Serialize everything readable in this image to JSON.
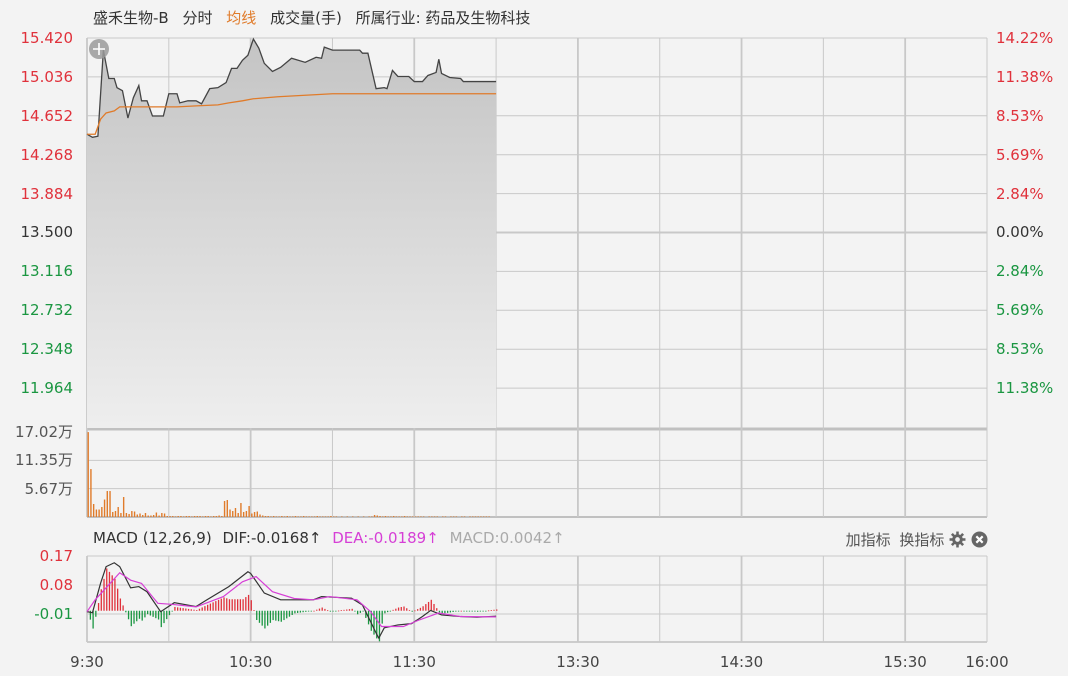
{
  "header": {
    "stock_name": "盛禾生物-B",
    "mode": "分时",
    "avg_line_label": "均线",
    "volume_label": "成交量(手)",
    "industry": "所属行业: 药品及生物科技"
  },
  "colors": {
    "up": "#e0313b",
    "down": "#1a9641",
    "avg_line": "#e07b2a",
    "volume": "#e07b2a",
    "dif": "#333333",
    "dea": "#d63fd6",
    "grid": "#c8c8c8"
  },
  "price_axis": {
    "labels": [
      "15.420",
      "15.036",
      "14.652",
      "14.268",
      "13.884",
      "13.500",
      "13.116",
      "12.732",
      "12.348",
      "11.964"
    ],
    "percent_labels": [
      "14.22%",
      "11.38%",
      "8.53%",
      "5.69%",
      "2.84%",
      "0.00%",
      "2.84%",
      "5.69%",
      "8.53%",
      "11.38%"
    ],
    "prev_close": 13.5
  },
  "volume_axis": {
    "labels": [
      "17.02万",
      "11.35万",
      "5.67万"
    ]
  },
  "macd": {
    "title": "MACD (12,26,9)",
    "dif": "DIF:-0.0168",
    "dea": "DEA:-0.0189",
    "macd": "MACD:0.0042",
    "arrow": "↑",
    "axis_labels": [
      "0.17",
      "0.08",
      "-0.01"
    ]
  },
  "tools": {
    "add_indicator": "加指标",
    "switch_indicator": "换指标",
    "settings_icon": "gear-icon",
    "close_icon": "close-circle-icon"
  },
  "time_axis": [
    "9:30",
    "10:30",
    "11:30",
    "13:30",
    "14:30",
    "15:30",
    "16:00"
  ],
  "chart_data": {
    "type": "line",
    "x_range": [
      "9:30",
      "16:00"
    ],
    "price_ylim": [
      11.58,
      15.42
    ],
    "price": [
      [
        "9:30",
        14.47
      ],
      [
        "9:32",
        14.44
      ],
      [
        "9:34",
        14.45
      ],
      [
        "9:36",
        15.3
      ],
      [
        "9:38",
        15.02
      ],
      [
        "9:40",
        15.02
      ],
      [
        "9:41",
        14.93
      ],
      [
        "9:43",
        14.9
      ],
      [
        "9:45",
        14.63
      ],
      [
        "9:47",
        14.83
      ],
      [
        "9:49",
        14.95
      ],
      [
        "9:50",
        14.8
      ],
      [
        "9:52",
        14.8
      ],
      [
        "9:54",
        14.65
      ],
      [
        "9:58",
        14.65
      ],
      [
        "10:00",
        14.87
      ],
      [
        "10:03",
        14.87
      ],
      [
        "10:04",
        14.78
      ],
      [
        "10:07",
        14.8
      ],
      [
        "10:10",
        14.8
      ],
      [
        "10:12",
        14.77
      ],
      [
        "10:15",
        14.92
      ],
      [
        "10:18",
        14.93
      ],
      [
        "10:21",
        14.98
      ],
      [
        "10:23",
        15.12
      ],
      [
        "10:25",
        15.12
      ],
      [
        "10:27",
        15.2
      ],
      [
        "10:29",
        15.25
      ],
      [
        "10:31",
        15.41
      ],
      [
        "10:33",
        15.32
      ],
      [
        "10:35",
        15.17
      ],
      [
        "10:38",
        15.09
      ],
      [
        "10:41",
        15.13
      ],
      [
        "10:45",
        15.22
      ],
      [
        "10:50",
        15.18
      ],
      [
        "10:54",
        15.23
      ],
      [
        "10:56",
        15.22
      ],
      [
        "10:57",
        15.33
      ],
      [
        "11:00",
        15.3
      ],
      [
        "11:10",
        15.3
      ],
      [
        "11:11",
        15.27
      ],
      [
        "11:13",
        15.27
      ],
      [
        "11:16",
        14.92
      ],
      [
        "11:19",
        14.93
      ],
      [
        "11:20",
        14.92
      ],
      [
        "11:22",
        15.1
      ],
      [
        "11:24",
        15.04
      ],
      [
        "11:28",
        15.04
      ],
      [
        "11:30",
        14.99
      ],
      [
        "11:33",
        14.99
      ],
      [
        "11:35",
        15.05
      ],
      [
        "11:38",
        15.08
      ],
      [
        "11:39",
        15.21
      ],
      [
        "11:40",
        15.07
      ],
      [
        "11:43",
        15.03
      ],
      [
        "11:47",
        15.02
      ],
      [
        "11:48",
        14.99
      ],
      [
        "12:00",
        14.99
      ]
    ],
    "avg_price": [
      [
        "9:30",
        14.47
      ],
      [
        "9:33",
        14.47
      ],
      [
        "9:35",
        14.62
      ],
      [
        "9:37",
        14.68
      ],
      [
        "9:40",
        14.7
      ],
      [
        "9:42",
        14.74
      ],
      [
        "10:03",
        14.74
      ],
      [
        "10:10",
        14.75
      ],
      [
        "10:18",
        14.76
      ],
      [
        "10:22",
        14.78
      ],
      [
        "10:27",
        14.8
      ],
      [
        "10:31",
        14.82
      ],
      [
        "10:40",
        14.84
      ],
      [
        "11:00",
        14.87
      ],
      [
        "12:00",
        14.87
      ]
    ],
    "volume_unit": "万",
    "volume_ylim": [
      0,
      17.02
    ],
    "volume": [
      17.0,
      9.6,
      2.6,
      1.5,
      1.5,
      2.0,
      3.5,
      5.2,
      5.2,
      1.0,
      1.2,
      2.0,
      0.8,
      4.0,
      0.8,
      0.6,
      1.2,
      1.1,
      0.5,
      0.7,
      0.4,
      0.8,
      0.3,
      0.3,
      0.4,
      0.9,
      0.3,
      0.8,
      0.7,
      0.2,
      0.2,
      0.2,
      0.1,
      0.2,
      0.2,
      0.1,
      0.2,
      0.2,
      0.1,
      0.2,
      0.2,
      0.2,
      0.1,
      0.2,
      0.2,
      0.1,
      0.2,
      0.2,
      0.3,
      0.2,
      3.2,
      3.4,
      1.5,
      1.2,
      1.8,
      0.8,
      2.8,
      1.0,
      1.2,
      2.2,
      0.7,
      1.0,
      1.1,
      0.5,
      0.3,
      0.2,
      0.2,
      0.1,
      0.2,
      0.1,
      0.1,
      0.2,
      0.1,
      0.2,
      0.1,
      0.1,
      0.2,
      0.1,
      0.1,
      0.2,
      0.1,
      0.1,
      0.1,
      0.1,
      0.2,
      0.1,
      0.1,
      0.1,
      0.1,
      0.2,
      0.1,
      0.1,
      0,
      0.1,
      0,
      0.1,
      0,
      0.1,
      0,
      0.1,
      0,
      0.1,
      0,
      0.1,
      0.1,
      0.4,
      0.3,
      0.2,
      0.1,
      0.2,
      0.1,
      0.1,
      0.2,
      0.1,
      0.1,
      0.1,
      0.2,
      0.1,
      0.1,
      0.1,
      0.1,
      0.1,
      0.1,
      0.1,
      0,
      0.1,
      0.1,
      0.1,
      0.1,
      0,
      0.1,
      0.1,
      0,
      0.1,
      0.1,
      0.1,
      0,
      0.1,
      0.1,
      0,
      0.1,
      0.1,
      0.1,
      0.1,
      0.1,
      0.1,
      0.1,
      0.1
    ],
    "macd_ylim": [
      -0.097,
      0.17
    ],
    "dif": [
      [
        "9:30",
        -0.003
      ],
      [
        "9:32",
        -0.006
      ],
      [
        "9:35",
        0.086
      ],
      [
        "9:37",
        0.137
      ],
      [
        "9:40",
        0.149
      ],
      [
        "9:42",
        0.137
      ],
      [
        "9:46",
        0.071
      ],
      [
        "9:49",
        0.075
      ],
      [
        "9:52",
        0.059
      ],
      [
        "9:57",
        -0.003
      ],
      [
        "10:02",
        0.025
      ],
      [
        "10:10",
        0.013
      ],
      [
        "10:14",
        0.034
      ],
      [
        "10:22",
        0.075
      ],
      [
        "10:29",
        0.121
      ],
      [
        "10:30",
        0.116
      ],
      [
        "10:35",
        0.055
      ],
      [
        "10:41",
        0.034
      ],
      [
        "10:53",
        0.034
      ],
      [
        "10:56",
        0.044
      ],
      [
        "11:07",
        0.039
      ],
      [
        "11:11",
        0.018
      ],
      [
        "11:16",
        -0.069
      ],
      [
        "11:17",
        -0.085
      ],
      [
        "11:19",
        -0.053
      ],
      [
        "11:24",
        -0.044
      ],
      [
        "11:29",
        -0.04
      ],
      [
        "11:33",
        -0.018
      ],
      [
        "11:36",
        0.001
      ],
      [
        "11:40",
        -0.013
      ],
      [
        "11:47",
        -0.018
      ],
      [
        "11:53",
        -0.02
      ],
      [
        "12:00",
        -0.017
      ]
    ],
    "dea": [
      [
        "9:30",
        -0.003
      ],
      [
        "9:33",
        0.034
      ],
      [
        "9:42",
        0.118
      ],
      [
        "9:46",
        0.095
      ],
      [
        "9:50",
        0.085
      ],
      [
        "9:56",
        0.023
      ],
      [
        "10:01",
        0.02
      ],
      [
        "10:10",
        0.012
      ],
      [
        "10:20",
        0.044
      ],
      [
        "10:27",
        0.09
      ],
      [
        "10:32",
        0.106
      ],
      [
        "10:38",
        0.059
      ],
      [
        "10:46",
        0.038
      ],
      [
        "10:53",
        0.034
      ],
      [
        "10:59",
        0.044
      ],
      [
        "11:09",
        0.034
      ],
      [
        "11:14",
        -0.003
      ],
      [
        "11:18",
        -0.049
      ],
      [
        "11:26",
        -0.049
      ],
      [
        "11:32",
        -0.028
      ],
      [
        "11:39",
        -0.007
      ],
      [
        "11:47",
        -0.018
      ],
      [
        "12:00",
        -0.019
      ]
    ]
  }
}
